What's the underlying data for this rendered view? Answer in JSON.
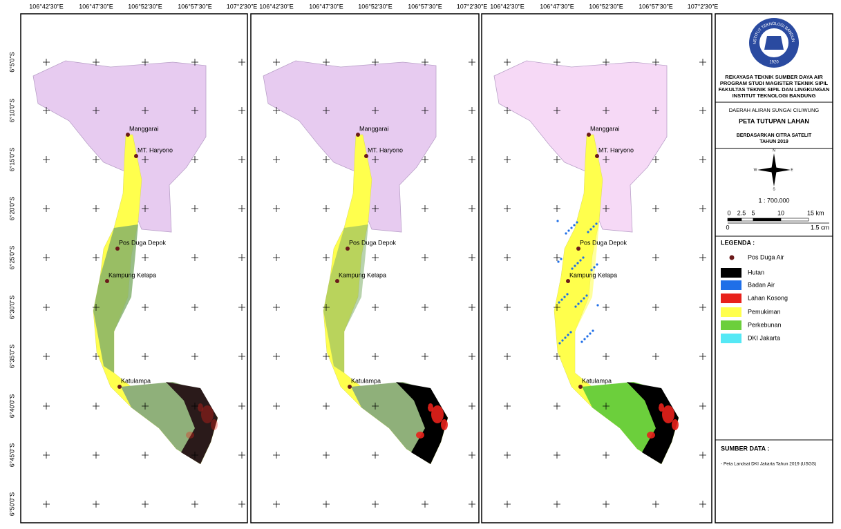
{
  "map": {
    "lon_labels": [
      "106°42'30\"E",
      "106°47'30\"E",
      "106°52'30\"E",
      "106°57'30\"E",
      "107°2'30\"E"
    ],
    "lat_labels": [
      "6°5'0\"S",
      "6°10'0\"S",
      "6°15'0\"S",
      "6°20'0\"S",
      "6°25'0\"S",
      "6°30'0\"S",
      "6°35'0\"S",
      "6°40'0\"S",
      "6°45'0\"S",
      "6°50'0\"S"
    ],
    "stations": [
      "Manggarai",
      "MT. Haryono",
      "Pos Duga Depok",
      "Kampung Kelapa",
      "Katulampa"
    ]
  },
  "logo": {
    "name": "INSTITUT TEKNOLOGI BANDUNG",
    "year": "1920"
  },
  "header": {
    "lines": [
      "REKAYASA TEKNIK SUMBER DAYA AIR",
      "PROGRAM STUDI MAGISTER TEKNIK SIPIL",
      "FAKULTAS TEKNIK SIPIL DAN LINGKUNGAN",
      "INSTITUT TEKNOLOGI BANDUNG"
    ]
  },
  "title": {
    "area": "DAERAH ALIRAN SUNGAI CILIWUNG",
    "main": "PETA TUTUPAN LAHAN",
    "sub": "BERDASARKAN CITRA SATELIT",
    "year": "TAHUN 2019"
  },
  "north": [
    "N",
    "E",
    "S",
    "W"
  ],
  "scale": {
    "ratio": "1 : 700.000",
    "bar_labels": [
      "0",
      "2.5",
      "5",
      "10",
      "15 km"
    ],
    "cm_labels": [
      "0",
      "1.5 cm"
    ]
  },
  "legend": {
    "title": "LEGENDA :",
    "items": [
      {
        "label": "Pos Duga Air",
        "color": "#6b1a1a"
      },
      {
        "label": "Hutan",
        "color": "#000000"
      },
      {
        "label": "Badan Air",
        "color": "#1f6fe8"
      },
      {
        "label": "Lahan Kosong",
        "color": "#e8211b"
      },
      {
        "label": "Pemukiman",
        "color": "#ffff4d"
      },
      {
        "label": "Perkebunan",
        "color": "#6ccf3c"
      },
      {
        "label": "DKI Jakarta",
        "color": "#55e8f5"
      }
    ]
  },
  "source": {
    "title": "SUMBER DATA :",
    "items": [
      "- Peta Landsat DKI Jakarta Tahun 2019 (USGS)"
    ]
  }
}
